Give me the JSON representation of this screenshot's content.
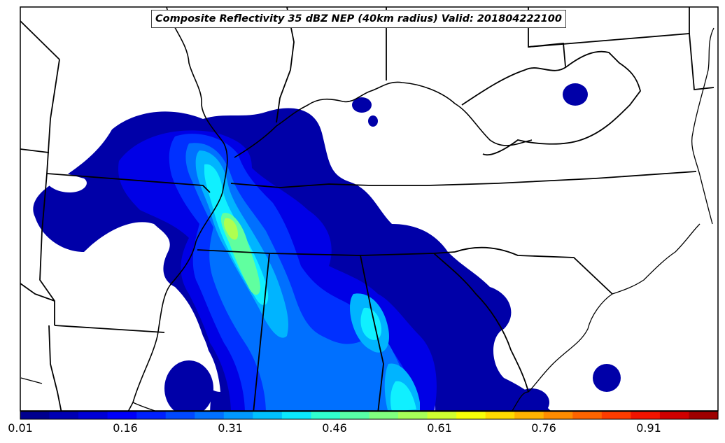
{
  "title": "Composite Reflectivity 35 dBZ NEP (40km radius) Valid: 201804222100",
  "colorbar": {
    "colors": [
      "#00008f",
      "#0000b3",
      "#0000d6",
      "#0000fa",
      "#0020ff",
      "#0048ff",
      "#0070ff",
      "#0098ff",
      "#00c0ff",
      "#0ae8ff",
      "#30ffcf",
      "#58ffa7",
      "#80ff7f",
      "#a7ff58",
      "#cfff30",
      "#f7ff08",
      "#ffdb00",
      "#ffb300",
      "#ff8c00",
      "#ff6400"
    ],
    "extra_colors": [
      "#ff3c00",
      "#f21400",
      "#cf0000",
      "#9f0000"
    ],
    "tick_labels": [
      "0.01",
      "0.16",
      "0.31",
      "0.46",
      "0.61",
      "0.76",
      "0.91"
    ]
  },
  "chart_data": {
    "type": "heatmap",
    "title": "Composite Reflectivity 35 dBZ NEP (40km radius) Valid: 201804222100",
    "colorbar_range": [
      0.01,
      1.0
    ],
    "colorbar_ticks": [
      0.01,
      0.16,
      0.31,
      0.46,
      0.61,
      0.76,
      0.91
    ],
    "colormap": "jet",
    "max_probability_approx": 0.52
  }
}
